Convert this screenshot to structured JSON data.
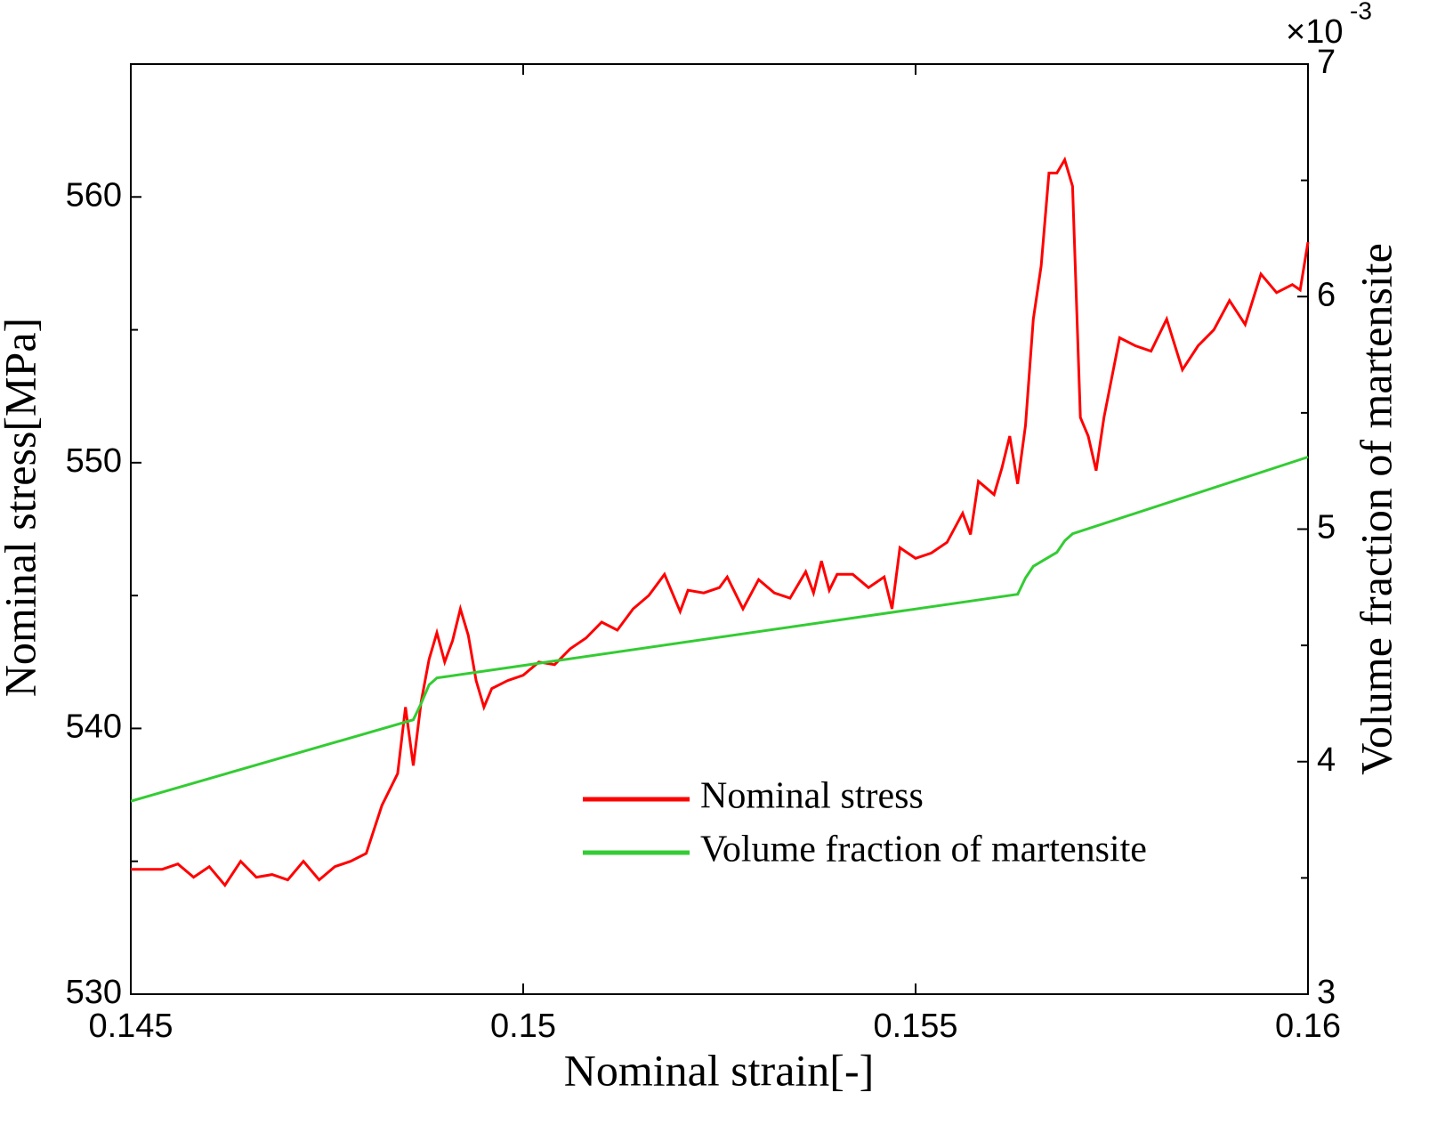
{
  "chart_data": {
    "type": "line",
    "xlabel": "Nominal strain[-]",
    "ylabel": "Nominal stress[MPa]",
    "y2label": "Volume fraction of martensite",
    "y2_scale_label": {
      "base": "×10",
      "exponent": "-3"
    },
    "xlim": [
      0.145,
      0.16
    ],
    "xticks": [
      0.145,
      0.15,
      0.155,
      0.16
    ],
    "ylim": [
      530,
      565
    ],
    "yticks": [
      530,
      540,
      550,
      560
    ],
    "yminorticks": [
      535,
      545,
      555
    ],
    "y2lim": [
      3,
      7
    ],
    "y2ticks": [
      3,
      4,
      5,
      6,
      7
    ],
    "y2minorticks": [
      3.5,
      4.5,
      5.5,
      6.5
    ],
    "legend": "center right",
    "series": [
      {
        "name": "Nominal stress",
        "color": "#ff0000",
        "axis": "y",
        "x": [
          0.145,
          0.1452,
          0.1454,
          0.1456,
          0.1458,
          0.146,
          0.1462,
          0.1464,
          0.1466,
          0.1468,
          0.147,
          0.1472,
          0.1474,
          0.1476,
          0.1478,
          0.148,
          0.1482,
          0.1484,
          0.1485,
          0.1486,
          0.1487,
          0.1488,
          0.1489,
          0.149,
          0.1491,
          0.1492,
          0.1493,
          0.1494,
          0.1495,
          0.1496,
          0.1498,
          0.15,
          0.1502,
          0.1504,
          0.1506,
          0.1508,
          0.151,
          0.1512,
          0.1514,
          0.1516,
          0.1518,
          0.1519,
          0.152,
          0.1521,
          0.1523,
          0.1525,
          0.1526,
          0.1528,
          0.153,
          0.1532,
          0.1534,
          0.1536,
          0.1537,
          0.1538,
          0.1539,
          0.154,
          0.1542,
          0.1544,
          0.1546,
          0.1547,
          0.1548,
          0.155,
          0.1552,
          0.1554,
          0.1556,
          0.1557,
          0.1558,
          0.156,
          0.1561,
          0.1562,
          0.1563,
          0.1564,
          0.1565,
          0.1566,
          0.1567,
          0.1568,
          0.1569,
          0.157,
          0.1571,
          0.1572,
          0.1573,
          0.1574,
          0.1576,
          0.1578,
          0.158,
          0.1582,
          0.1584,
          0.1586,
          0.1588,
          0.159,
          0.1592,
          0.1594,
          0.1596,
          0.1598,
          0.1599,
          0.16
        ],
        "values": [
          534.7,
          534.7,
          534.7,
          534.9,
          534.4,
          534.8,
          534.1,
          535.0,
          534.4,
          534.5,
          534.3,
          535.0,
          534.3,
          534.8,
          535.0,
          535.3,
          537.1,
          538.3,
          540.8,
          538.6,
          541.0,
          542.6,
          543.6,
          542.5,
          543.3,
          544.5,
          543.5,
          541.8,
          540.8,
          541.5,
          541.8,
          542.0,
          542.5,
          542.4,
          543.0,
          543.4,
          544.0,
          543.7,
          544.5,
          545.0,
          545.8,
          545.1,
          544.4,
          545.2,
          545.1,
          545.3,
          545.7,
          544.5,
          545.6,
          545.1,
          544.9,
          545.9,
          545.1,
          546.3,
          545.2,
          545.8,
          545.8,
          545.3,
          545.7,
          544.5,
          546.8,
          546.4,
          546.6,
          547.0,
          548.1,
          547.3,
          549.3,
          548.8,
          549.8,
          551.0,
          549.2,
          551.4,
          555.4,
          557.4,
          560.9,
          560.9,
          561.4,
          560.4,
          551.7,
          551.0,
          549.7,
          551.7,
          554.7,
          554.4,
          554.2,
          555.4,
          553.5,
          554.4,
          555.0,
          556.1,
          555.2,
          557.1,
          556.4,
          556.7,
          556.5,
          558.3
        ]
      },
      {
        "name": "Volume fraction of martensite",
        "color": "#33cc33",
        "axis": "y2",
        "x": [
          0.145,
          0.1486,
          0.1487,
          0.1488,
          0.1489,
          0.1563,
          0.1564,
          0.1565,
          0.1568,
          0.1569,
          0.157,
          0.16
        ],
        "values": [
          3.83,
          4.18,
          4.25,
          4.33,
          4.36,
          4.72,
          4.79,
          4.84,
          4.9,
          4.95,
          4.98,
          5.31
        ]
      }
    ]
  }
}
